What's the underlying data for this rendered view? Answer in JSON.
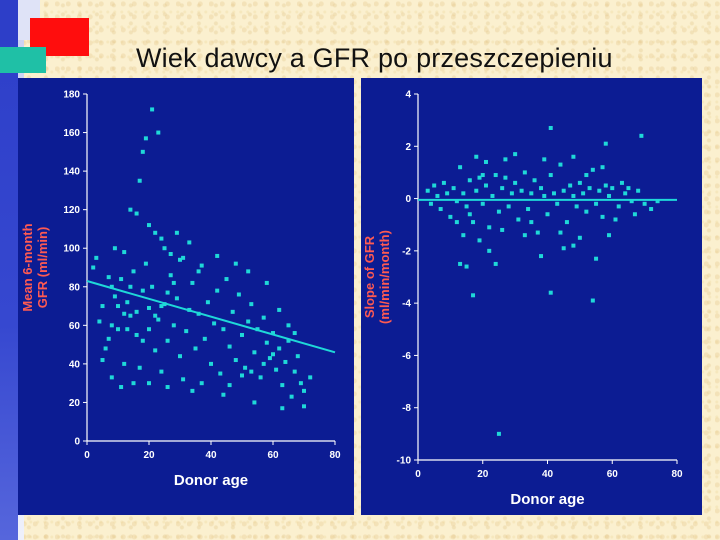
{
  "slide": {
    "title": "Wiek dawcy a GFR po przeszczepieniu"
  },
  "colors": {
    "panel_bg": "#0c1c93",
    "points": "#1fd8d8",
    "axis": "#ffffff",
    "tick_text": "#ffffff",
    "ylabel_text": "#ff5a52",
    "xlabel_text": "#ffffff"
  },
  "chart_data": [
    {
      "type": "scatter",
      "title": "",
      "xlabel": "Donor age",
      "ylabel": "Mean 6-month GFR (ml/min)",
      "ylabel_lines": [
        "Mean 6-month",
        "GFR (ml/min)"
      ],
      "xlim": [
        0,
        80
      ],
      "ylim": [
        0,
        180
      ],
      "xticks": [
        0,
        20,
        40,
        60,
        80
      ],
      "yticks": [
        0,
        20,
        40,
        60,
        80,
        100,
        120,
        140,
        160,
        180
      ],
      "trendline": {
        "x": [
          0,
          80
        ],
        "y": [
          83,
          46
        ]
      },
      "points": [
        [
          2,
          90
        ],
        [
          3,
          95
        ],
        [
          4,
          62
        ],
        [
          5,
          70
        ],
        [
          6,
          48
        ],
        [
          7,
          53
        ],
        [
          8,
          60
        ],
        [
          9,
          75
        ],
        [
          10,
          58
        ],
        [
          11,
          84
        ],
        [
          12,
          40
        ],
        [
          13,
          72
        ],
        [
          14,
          65
        ],
        [
          15,
          88
        ],
        [
          16,
          55
        ],
        [
          17,
          38
        ],
        [
          18,
          78
        ],
        [
          19,
          92
        ],
        [
          20,
          69
        ],
        [
          21,
          80
        ],
        [
          22,
          47
        ],
        [
          23,
          63
        ],
        [
          24,
          105
        ],
        [
          25,
          71
        ],
        [
          26,
          52
        ],
        [
          27,
          86
        ],
        [
          28,
          60
        ],
        [
          29,
          74
        ],
        [
          30,
          44
        ],
        [
          31,
          95
        ],
        [
          32,
          57
        ],
        [
          33,
          68
        ],
        [
          34,
          82
        ],
        [
          35,
          48
        ],
        [
          36,
          66
        ],
        [
          37,
          91
        ],
        [
          38,
          53
        ],
        [
          39,
          72
        ],
        [
          40,
          40
        ],
        [
          41,
          61
        ],
        [
          42,
          78
        ],
        [
          43,
          35
        ],
        [
          44,
          58
        ],
        [
          45,
          84
        ],
        [
          46,
          49
        ],
        [
          47,
          67
        ],
        [
          48,
          42
        ],
        [
          49,
          76
        ],
        [
          50,
          55
        ],
        [
          51,
          38
        ],
        [
          52,
          62
        ],
        [
          53,
          71
        ],
        [
          54,
          46
        ],
        [
          55,
          58
        ],
        [
          56,
          33
        ],
        [
          57,
          64
        ],
        [
          58,
          51
        ],
        [
          59,
          43
        ],
        [
          60,
          56
        ],
        [
          61,
          37
        ],
        [
          62,
          48
        ],
        [
          63,
          29
        ],
        [
          64,
          41
        ],
        [
          65,
          52
        ],
        [
          66,
          23
        ],
        [
          67,
          36
        ],
        [
          68,
          44
        ],
        [
          69,
          30
        ],
        [
          70,
          26
        ],
        [
          72,
          33
        ],
        [
          18,
          150
        ],
        [
          19,
          157
        ],
        [
          21,
          172
        ],
        [
          23,
          160
        ],
        [
          17,
          135
        ],
        [
          14,
          120
        ],
        [
          16,
          118
        ],
        [
          20,
          112
        ],
        [
          22,
          108
        ],
        [
          25,
          100
        ],
        [
          27,
          97
        ],
        [
          29,
          108
        ],
        [
          33,
          103
        ],
        [
          9,
          100
        ],
        [
          12,
          98
        ],
        [
          15,
          30
        ],
        [
          20,
          30
        ],
        [
          26,
          28
        ],
        [
          34,
          26
        ],
        [
          44,
          24
        ],
        [
          54,
          20
        ],
        [
          63,
          17
        ],
        [
          70,
          18
        ],
        [
          5,
          42
        ],
        [
          8,
          33
        ],
        [
          11,
          28
        ],
        [
          24,
          36
        ],
        [
          31,
          32
        ],
        [
          37,
          30
        ],
        [
          46,
          29
        ],
        [
          50,
          34
        ],
        [
          53,
          36
        ],
        [
          57,
          40
        ],
        [
          60,
          45
        ],
        [
          65,
          60
        ],
        [
          67,
          56
        ],
        [
          62,
          68
        ],
        [
          58,
          82
        ],
        [
          52,
          88
        ],
        [
          48,
          92
        ],
        [
          42,
          96
        ],
        [
          36,
          88
        ],
        [
          30,
          94
        ],
        [
          28,
          82
        ],
        [
          26,
          77
        ],
        [
          24,
          70
        ],
        [
          22,
          65
        ],
        [
          20,
          58
        ],
        [
          18,
          52
        ],
        [
          16,
          67
        ],
        [
          14,
          80
        ],
        [
          13,
          58
        ],
        [
          12,
          66
        ],
        [
          10,
          70
        ],
        [
          8,
          80
        ],
        [
          7,
          85
        ]
      ]
    },
    {
      "type": "scatter",
      "title": "",
      "xlabel": "Donor age",
      "ylabel": "Slope of GFR (ml/min/month)",
      "ylabel_lines": [
        "Slope of GFR",
        "(ml/min/month)"
      ],
      "xlim": [
        0,
        80
      ],
      "ylim": [
        -10,
        4
      ],
      "xticks": [
        0,
        20,
        40,
        60,
        80
      ],
      "yticks": [
        4,
        2,
        0,
        -2,
        -4,
        -6,
        -8,
        -10
      ],
      "trendline": {
        "x": [
          0,
          80
        ],
        "y": [
          -0.05,
          -0.05
        ]
      },
      "points": [
        [
          3,
          0.3
        ],
        [
          4,
          -0.2
        ],
        [
          5,
          0.5
        ],
        [
          6,
          0.1
        ],
        [
          7,
          -0.4
        ],
        [
          8,
          0.6
        ],
        [
          9,
          0.2
        ],
        [
          10,
          -0.7
        ],
        [
          11,
          0.4
        ],
        [
          12,
          -0.1
        ],
        [
          13,
          1.2
        ],
        [
          14,
          0.2
        ],
        [
          15,
          -0.3
        ],
        [
          16,
          0.7
        ],
        [
          17,
          -0.9
        ],
        [
          18,
          0.3
        ],
        [
          19,
          0.8
        ],
        [
          20,
          -0.2
        ],
        [
          21,
          0.5
        ],
        [
          22,
          -1.1
        ],
        [
          23,
          0.1
        ],
        [
          24,
          0.9
        ],
        [
          25,
          -0.5
        ],
        [
          26,
          0.4
        ],
        [
          27,
          1.5
        ],
        [
          28,
          -0.3
        ],
        [
          29,
          0.2
        ],
        [
          30,
          0.6
        ],
        [
          31,
          -0.8
        ],
        [
          32,
          0.3
        ],
        [
          33,
          1.0
        ],
        [
          34,
          -0.4
        ],
        [
          35,
          0.2
        ],
        [
          36,
          0.7
        ],
        [
          37,
          -1.3
        ],
        [
          38,
          0.4
        ],
        [
          39,
          0.1
        ],
        [
          40,
          -0.6
        ],
        [
          41,
          0.9
        ],
        [
          42,
          0.2
        ],
        [
          43,
          -0.2
        ],
        [
          44,
          1.3
        ],
        [
          45,
          0.3
        ],
        [
          46,
          -0.9
        ],
        [
          47,
          0.5
        ],
        [
          48,
          0.1
        ],
        [
          49,
          -0.3
        ],
        [
          50,
          0.6
        ],
        [
          51,
          0.2
        ],
        [
          52,
          -0.5
        ],
        [
          53,
          0.4
        ],
        [
          54,
          1.1
        ],
        [
          55,
          -0.2
        ],
        [
          56,
          0.3
        ],
        [
          57,
          -0.7
        ],
        [
          58,
          0.5
        ],
        [
          59,
          0.1
        ],
        [
          60,
          0.4
        ],
        [
          62,
          -0.3
        ],
        [
          64,
          0.2
        ],
        [
          66,
          -0.1
        ],
        [
          68,
          0.3
        ],
        [
          72,
          -0.4
        ],
        [
          18,
          1.6
        ],
        [
          21,
          1.4
        ],
        [
          30,
          1.7
        ],
        [
          39,
          1.5
        ],
        [
          41,
          2.7
        ],
        [
          48,
          1.6
        ],
        [
          58,
          2.1
        ],
        [
          69,
          2.4
        ],
        [
          13,
          -2.5
        ],
        [
          15,
          -2.6
        ],
        [
          17,
          -3.7
        ],
        [
          22,
          -2.0
        ],
        [
          24,
          -2.5
        ],
        [
          38,
          -2.2
        ],
        [
          45,
          -1.9
        ],
        [
          48,
          -1.8
        ],
        [
          55,
          -2.3
        ],
        [
          59,
          -1.4
        ],
        [
          41,
          -3.6
        ],
        [
          54,
          -3.9
        ],
        [
          25,
          -9.0
        ],
        [
          14,
          -1.4
        ],
        [
          19,
          -1.6
        ],
        [
          26,
          -1.2
        ],
        [
          33,
          -1.4
        ],
        [
          44,
          -1.3
        ],
        [
          50,
          -1.5
        ],
        [
          12,
          -0.9
        ],
        [
          16,
          -0.6
        ],
        [
          20,
          0.9
        ],
        [
          27,
          0.8
        ],
        [
          35,
          -0.9
        ],
        [
          52,
          0.9
        ],
        [
          57,
          1.2
        ],
        [
          61,
          -0.8
        ],
        [
          63,
          0.6
        ],
        [
          65,
          0.4
        ],
        [
          67,
          -0.6
        ],
        [
          70,
          -0.2
        ],
        [
          74,
          -0.1
        ]
      ]
    }
  ]
}
